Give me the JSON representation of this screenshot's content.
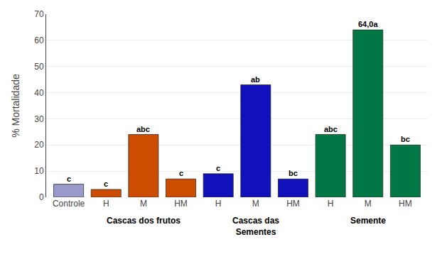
{
  "chart_data": {
    "type": "bar",
    "categories": [
      "Controle",
      "H",
      "M",
      "HM",
      "H",
      "M",
      "HM",
      "H",
      "M",
      "HM"
    ],
    "values": [
      5.0,
      3.0,
      24.0,
      7.0,
      9.0,
      43.0,
      7.0,
      24.0,
      64.0,
      20.0
    ],
    "colors": [
      "#9999cc",
      "#cc4c00",
      "#cc4c00",
      "#cc4c00",
      "#1111bb",
      "#1111bb",
      "#1111bb",
      "#007744",
      "#007744",
      "#007744"
    ],
    "annotations": [
      "c",
      "c",
      "abc",
      "c",
      "c",
      "ab",
      "bc",
      "abc",
      "64,0a",
      "bc"
    ],
    "groups": [
      null,
      "Cascas dos frutos",
      "Cascas dos frutos",
      "Cascas dos frutos",
      "Cascas das\nSementes",
      "Cascas das\nSementes",
      "Cascas das\nSementes",
      "Semente",
      "Semente",
      "Semente"
    ],
    "ylabel": "% Mortalidade",
    "ylim": [
      0,
      70
    ],
    "yticks": [
      0,
      10,
      20,
      30,
      40,
      50,
      60,
      70
    ],
    "grid": true
  }
}
